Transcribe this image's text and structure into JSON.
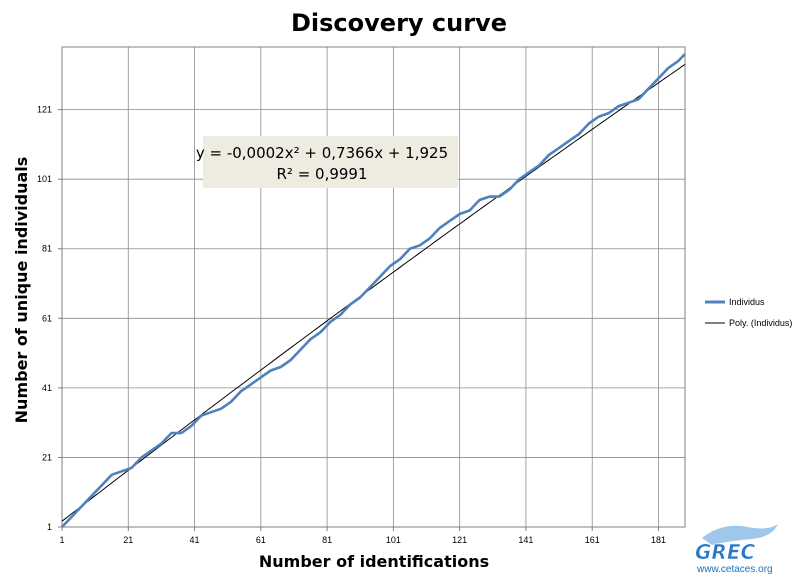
{
  "chart_data": {
    "type": "line",
    "title": "Discovery curve",
    "xlabel": "Number of identifications",
    "ylabel": "Number of unique individuals",
    "xlim": [
      1,
      189
    ],
    "ylim": [
      1,
      139
    ],
    "xticks": [
      1,
      21,
      41,
      61,
      81,
      101,
      121,
      141,
      161,
      181
    ],
    "yticks": [
      1,
      21,
      41,
      61,
      81,
      101,
      121
    ],
    "grid": true,
    "legend": "right",
    "series": [
      {
        "name": "Individus",
        "color": "#4f81bd",
        "x": [
          1,
          4,
          7,
          10,
          13,
          16,
          19,
          22,
          25,
          28,
          31,
          34,
          37,
          40,
          43,
          46,
          49,
          52,
          55,
          58,
          61,
          64,
          67,
          70,
          73,
          76,
          79,
          82,
          85,
          88,
          91,
          94,
          97,
          100,
          103,
          106,
          109,
          112,
          115,
          118,
          121,
          124,
          127,
          130,
          133,
          136,
          139,
          142,
          145,
          148,
          151,
          154,
          157,
          160,
          163,
          166,
          169,
          172,
          175,
          178,
          181,
          184,
          187,
          189
        ],
        "y": [
          1,
          4,
          7,
          10,
          13,
          16,
          17,
          18,
          21,
          23,
          25,
          28,
          28,
          30,
          33,
          34,
          35,
          37,
          40,
          42,
          44,
          46,
          47,
          49,
          52,
          55,
          57,
          60,
          62,
          65,
          67,
          70,
          73,
          76,
          78,
          81,
          82,
          84,
          87,
          89,
          91,
          92,
          95,
          96,
          96,
          98,
          101,
          103,
          105,
          108,
          110,
          112,
          114,
          117,
          119,
          120,
          122,
          123,
          124,
          127,
          130,
          133,
          135,
          137
        ]
      },
      {
        "name": "Poly. (Individus)",
        "color": "#000000",
        "type": "trendline",
        "equation": "y = -0,0002x² + 0,7366x + 1,925",
        "r_squared": "R² = 0,9991",
        "coefficients": [
          -0.0002,
          0.7366,
          1.925
        ]
      }
    ]
  },
  "branding": {
    "logo_text": "GREC",
    "url": "www.cetaces.org",
    "colors": {
      "logo": "#2a78c8",
      "url": "#1f6fb5"
    }
  }
}
